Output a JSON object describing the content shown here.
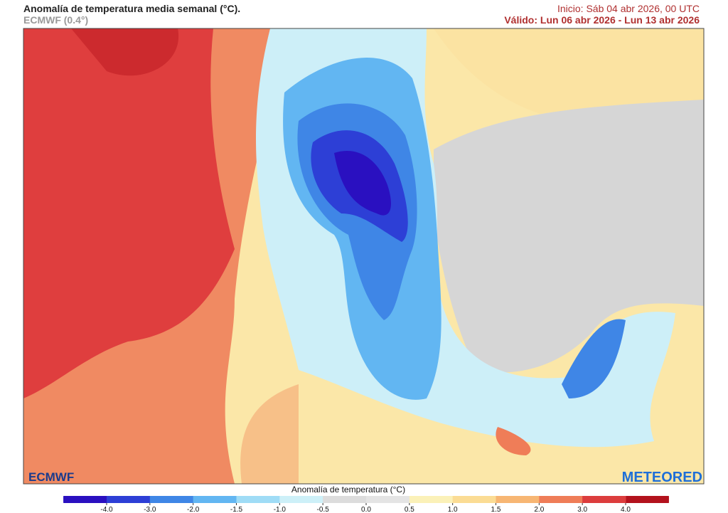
{
  "header": {
    "title": "Anomalía de temperatura media semanal (°C).",
    "model": "ECMWF (0.4°)",
    "init": "Inicio: Sáb 04 abr 2026, 00 UTC",
    "valid": "Válido: Lun 06 abr 2026 - Lun 13 abr 2026"
  },
  "logos": {
    "left": "ECMWF",
    "right": "METEORED"
  },
  "colorbar": {
    "title": "Anomalía de temperatura (°C)",
    "ticks": [
      {
        "value": -4,
        "label": "-4.0"
      },
      {
        "value": -3,
        "label": "-3.0"
      },
      {
        "value": -2,
        "label": "-2.0"
      },
      {
        "value": -1.5,
        "label": "-1.5"
      },
      {
        "value": -1,
        "label": "-1.0"
      },
      {
        "value": -0.5,
        "label": "-0.5"
      },
      {
        "value": 0,
        "label": "0.0"
      },
      {
        "value": 0.5,
        "label": "0.5"
      },
      {
        "value": 1,
        "label": "1.0"
      },
      {
        "value": 1.5,
        "label": "1.5"
      },
      {
        "value": 2,
        "label": "2.0"
      },
      {
        "value": 3,
        "label": "3.0"
      },
      {
        "value": 4,
        "label": "4.0"
      }
    ],
    "colors": [
      "#2a10c0",
      "#2d3fd6",
      "#3f86e6",
      "#62b6f2",
      "#9fdcf6",
      "#cdf0f8",
      "#dcdcdc",
      "#e4e4e4",
      "#fbf1b8",
      "#fbdc94",
      "#f7b673",
      "#ef7d58",
      "#dc3d3d",
      "#b3121d"
    ]
  }
}
